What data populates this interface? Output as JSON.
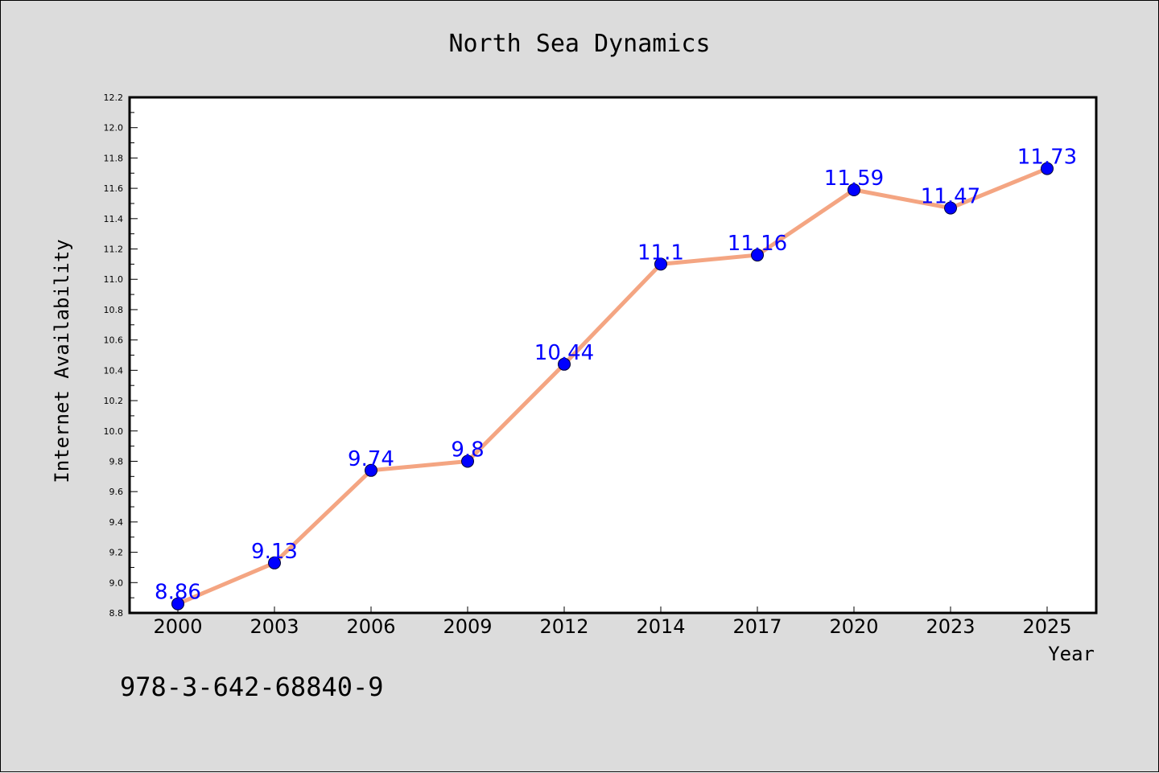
{
  "colors": {
    "background": "#dcdcdc",
    "plot_background": "#ffffff",
    "line": "#f4a582",
    "marker": "#0000ff",
    "data_label": "#0000ff",
    "axis": "#000000"
  },
  "footer": {
    "isbn": "978-3-642-68840-9"
  },
  "chart_data": {
    "type": "line",
    "title": "North Sea Dynamics",
    "xlabel": "Year",
    "ylabel": "Internet Availability",
    "categories": [
      "2000",
      "2003",
      "2006",
      "2009",
      "2012",
      "2014",
      "2017",
      "2020",
      "2023",
      "2025"
    ],
    "series": [
      {
        "values": [
          8.86,
          9.13,
          9.74,
          9.8,
          10.44,
          11.1,
          11.16,
          11.59,
          11.47,
          11.73
        ],
        "data_labels": [
          "8.86",
          "9.13",
          "9.74",
          "9.8",
          "10.44",
          "11.1",
          "11.16",
          "11.59",
          "11.47",
          "11.73"
        ]
      }
    ],
    "ylim": [
      8.8,
      12.2
    ],
    "y_major_ticks": [
      "8.8",
      "9.0",
      "9.2",
      "9.4",
      "9.6",
      "9.8",
      "10.0",
      "10.2",
      "10.4",
      "10.6",
      "10.8",
      "11.0",
      "11.2",
      "11.4",
      "11.6",
      "11.8",
      "12.0",
      "12.2"
    ],
    "grid": false,
    "legend": "none"
  }
}
